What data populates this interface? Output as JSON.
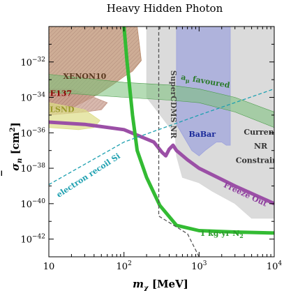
{
  "chart_data": {
    "type": "line",
    "title": "Heavy Hidden Photon",
    "xlabel": "m",
    "xlabel_sub": "χ",
    "xlabel_units": "[MeV]",
    "ylabel": "σ",
    "ylabel_sub": "n",
    "ylabel_units": "[cm",
    "ylabel_units_sup": "2",
    "ylabel_units_close": "]",
    "x_scale": "log",
    "y_scale": "log",
    "xlim": [
      10,
      10000
    ],
    "ylim": [
      1e-43,
      1e-30
    ],
    "x_ticks": [
      {
        "value": 10,
        "base": "10",
        "exp": ""
      },
      {
        "value": 100,
        "base": "10",
        "exp": "2"
      },
      {
        "value": 1000,
        "base": "10",
        "exp": "3"
      },
      {
        "value": 10000,
        "base": "10",
        "exp": "4"
      }
    ],
    "y_ticks": [
      {
        "value": 1e-32,
        "base": "10",
        "exp": "−32"
      },
      {
        "value": 1e-34,
        "base": "10",
        "exp": "−34"
      },
      {
        "value": 1e-36,
        "base": "10",
        "exp": "−36"
      },
      {
        "value": 1e-38,
        "base": "10",
        "exp": "−38"
      },
      {
        "value": 1e-40,
        "base": "10",
        "exp": "−40"
      },
      {
        "value": 1e-42,
        "base": "10",
        "exp": "−42"
      }
    ],
    "regions": [
      {
        "name": "XENON10",
        "color": "#b98a6a",
        "points": [
          [
            10,
            1e-30
          ],
          [
            150,
            1e-30
          ],
          [
            170,
            1.2e-32
          ],
          [
            130,
            3e-33
          ],
          [
            100,
            1.5e-33
          ],
          [
            70,
            5e-34
          ],
          [
            45,
            1.5e-34
          ],
          [
            30,
            6e-35
          ],
          [
            20,
            2.5e-35
          ],
          [
            10,
            2e-35
          ]
        ]
      },
      {
        "name": "E137",
        "color": "#c79a8a",
        "points": [
          [
            10,
            3e-34
          ],
          [
            20,
            3e-34
          ],
          [
            40,
            1e-34
          ],
          [
            60,
            5e-35
          ],
          [
            50,
            2e-35
          ],
          [
            30,
            1.5e-35
          ],
          [
            10,
            1e-35
          ]
        ]
      },
      {
        "name": "LSND",
        "color": "#dddd88",
        "points": [
          [
            10,
            5e-35
          ],
          [
            30,
            2e-35
          ],
          [
            48,
            5e-36
          ],
          [
            40,
            2e-36
          ],
          [
            25,
            1.5e-36
          ],
          [
            10,
            2e-36
          ]
        ]
      },
      {
        "name": "SuperCDMS NR",
        "color": "#d9d9d9",
        "points": [
          [
            200,
            1e-30
          ],
          [
            10000,
            1e-30
          ],
          [
            10000,
            1.5e-41
          ],
          [
            5000,
            1.5e-41
          ],
          [
            3000,
            1e-40
          ],
          [
            1500,
            5e-40
          ],
          [
            1000,
            1.5e-39
          ],
          [
            600,
            3e-39
          ],
          [
            500,
            5e-38
          ],
          [
            480,
            8e-37
          ],
          [
            200,
            1e-34
          ]
        ]
      },
      {
        "name": "BaBar",
        "color": "#9da2dd",
        "points": [
          [
            500,
            1e-30
          ],
          [
            2600,
            1e-30
          ],
          [
            2600,
            2e-37
          ],
          [
            2300,
            2e-37
          ],
          [
            2000,
            3e-37
          ],
          [
            1700,
            3e-37
          ],
          [
            1200,
            1e-37
          ],
          [
            1000,
            5e-38
          ],
          [
            800,
            1e-37
          ],
          [
            500,
            3e-36
          ]
        ]
      }
    ],
    "annotations": [
      {
        "text": "XENON10",
        "x": 30,
        "y": 1.1e-33,
        "color": "#5a3a20"
      },
      {
        "text": "E137",
        "x": 14.5,
        "y": 1.2e-34,
        "color": "#8b0000"
      },
      {
        "text": "LSND",
        "x": 15,
        "y": 1.5e-35,
        "color": "#9a9a2a"
      },
      {
        "text": "SuperCDMS NR",
        "x": 420,
        "y": 4e-35,
        "color": "#444444",
        "rotate": 90
      },
      {
        "text": "a",
        "x": 1200,
        "y": 6e-34,
        "color": "#2a7a2a",
        "rotate": 10,
        "sub": "μ",
        "rest": " favoured"
      },
      {
        "text": "BaBar",
        "x": 1100,
        "y": 6e-37,
        "color": "#1a2a9a"
      },
      {
        "text": "Current",
        "x": 6600,
        "y": 8e-37,
        "color": "#333333"
      },
      {
        "text": "NR",
        "x": 6600,
        "y": 1.3e-37,
        "color": "#333333"
      },
      {
        "text": "Constraints",
        "x": 6600,
        "y": 2e-38,
        "color": "#333333"
      },
      {
        "text": "Freeze Out",
        "x": 4000,
        "y": 2.5e-40,
        "color": "#8e3f9e",
        "rotate": 25
      },
      {
        "text": "electron recoil Si",
        "x": 35,
        "y": 3e-39,
        "color": "#1ea0b0",
        "rotate": -33
      },
      {
        "text": "1 kg·yr N",
        "x": 2000,
        "y": 1.5e-42,
        "color": "#2a9a2a",
        "sub": "2"
      }
    ],
    "series": [
      {
        "name": "a_μ favoured",
        "type": "band",
        "color": "#78c078",
        "upper": [
          [
            10,
            2e-33
          ],
          [
            100,
            7e-34
          ],
          [
            400,
            5e-34
          ],
          [
            1000,
            3e-34
          ],
          [
            3000,
            1e-34
          ],
          [
            10000,
            1.5e-35
          ]
        ],
        "lower": [
          [
            10,
            2e-34
          ],
          [
            100,
            1e-34
          ],
          [
            400,
            7e-35
          ],
          [
            1000,
            5e-35
          ],
          [
            3000,
            1.5e-35
          ],
          [
            10000,
            2e-36
          ]
        ]
      },
      {
        "name": "Freeze Out",
        "type": "line",
        "color": "#9b4fa6",
        "points": [
          [
            10,
            4e-36
          ],
          [
            30,
            3e-36
          ],
          [
            100,
            1.5e-36
          ],
          [
            250,
            3e-37
          ],
          [
            320,
            8e-38
          ],
          [
            360,
            5e-38
          ],
          [
            400,
            1.2e-37
          ],
          [
            450,
            2e-37
          ],
          [
            500,
            1e-37
          ],
          [
            700,
            3e-38
          ],
          [
            1000,
            1e-38
          ],
          [
            3000,
            1e-39
          ],
          [
            10000,
            1e-40
          ]
        ]
      },
      {
        "name": "1 kg·yr N2",
        "type": "line",
        "color": "#33bb33",
        "points": [
          [
            100,
            1e-30
          ],
          [
            110,
            1e-32
          ],
          [
            130,
            1e-35
          ],
          [
            150,
            1e-37
          ],
          [
            200,
            3e-39
          ],
          [
            300,
            8e-41
          ],
          [
            500,
            6e-42
          ],
          [
            1000,
            3e-42
          ],
          [
            3000,
            2.5e-42
          ],
          [
            10000,
            2.2e-42
          ]
        ]
      },
      {
        "name": "SuperCDMS NR",
        "type": "dashed",
        "color": "#555555",
        "points": [
          [
            290,
            1e-30
          ],
          [
            290,
            2e-41
          ],
          [
            700,
            2e-42
          ],
          [
            1000,
            1e-43
          ]
        ]
      },
      {
        "name": "electron recoil Si",
        "type": "dashed",
        "color": "#1ea0b0",
        "points": [
          [
            10,
            1.2e-39
          ],
          [
            100,
            3e-37
          ],
          [
            1000,
            1e-35
          ],
          [
            10000,
            3e-34
          ]
        ]
      }
    ]
  }
}
